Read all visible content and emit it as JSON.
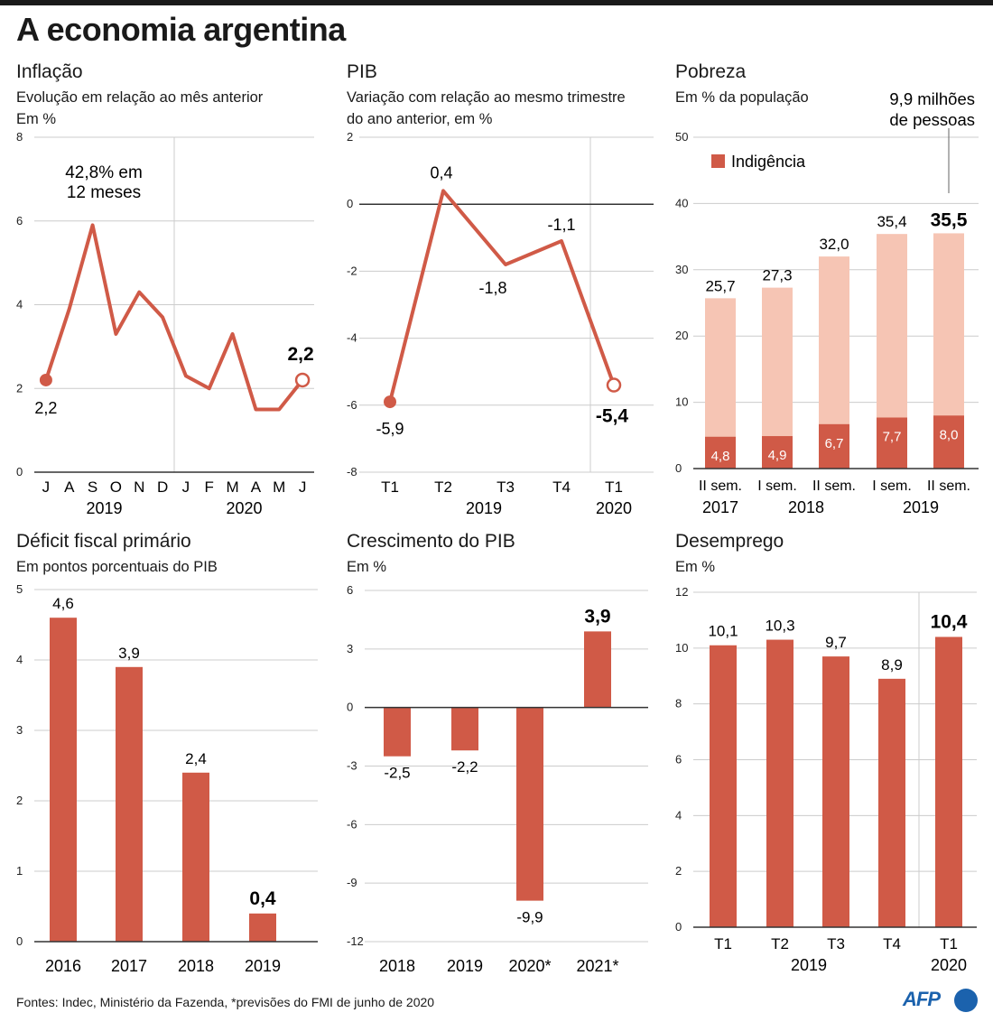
{
  "page_title": "A economia argentina",
  "footer": "Fontes: Indec, Ministério da Fazenda, *previsões do FMI de junho de 2020",
  "logo": "AFP",
  "colors": {
    "bar": "#d05a47",
    "bar_light": "#f6c5b4",
    "line": "#d05a47",
    "axis": "#333333",
    "grid": "#cccccc"
  },
  "chart_data": [
    {
      "id": "inflacao",
      "type": "line",
      "title": "Inflação",
      "subtitle": "Evolução em relação ao mês anterior\nEm %",
      "categories": [
        "J",
        "A",
        "S",
        "O",
        "N",
        "D",
        "J",
        "F",
        "M",
        "A",
        "M",
        "J"
      ],
      "year_labels": [
        "2019",
        "2020"
      ],
      "values": [
        2.2,
        3.9,
        5.9,
        3.3,
        4.3,
        3.7,
        2.3,
        2.0,
        3.3,
        1.5,
        1.5,
        2.2
      ],
      "first_label": "2,2",
      "last_label": "2,2",
      "annotation": "42,8% em\n12 meses",
      "yticks": [
        "0",
        "2",
        "4",
        "6",
        "8"
      ],
      "ylim": [
        0,
        8
      ]
    },
    {
      "id": "pib",
      "type": "line",
      "title": "PIB",
      "subtitle": "Variação com relação ao mesmo trimestre\ndo ano anterior, em %",
      "categories": [
        "T1",
        "T2",
        "T3",
        "T4",
        "T1"
      ],
      "year_labels": [
        "2019",
        "2020"
      ],
      "values": [
        -5.9,
        0.4,
        -1.8,
        -1.1,
        -5.4
      ],
      "point_labels": [
        "-5,9",
        "0,4",
        "-1,8",
        "-1,1",
        "-5,4"
      ],
      "yticks": [
        "-8",
        "-6",
        "-4",
        "-2",
        "0",
        "2"
      ],
      "ylim": [
        -8,
        2
      ]
    },
    {
      "id": "pobreza",
      "type": "bar",
      "title": "Pobreza",
      "subtitle": "Em % da população",
      "legend": "Indigência",
      "annotation": "9,9 milhões\nde pessoas",
      "categories": [
        "II sem.",
        "I sem.",
        "II sem.",
        "I sem.",
        "II sem."
      ],
      "year_labels": [
        "2017",
        "2018",
        "2019"
      ],
      "series": [
        {
          "name": "Indigência",
          "values": [
            4.8,
            4.9,
            6.7,
            7.7,
            8.0
          ],
          "labels": [
            "4,8",
            "4,9",
            "6,7",
            "7,7",
            "8,0"
          ]
        },
        {
          "name": "Pobreza",
          "values": [
            25.7,
            27.3,
            32.0,
            35.4,
            35.5
          ],
          "labels": [
            "25,7",
            "27,3",
            "32,0",
            "35,4",
            "35,5"
          ]
        }
      ],
      "yticks": [
        "0",
        "10",
        "20",
        "30",
        "40",
        "50"
      ],
      "ylim": [
        0,
        50
      ]
    },
    {
      "id": "deficit",
      "type": "bar",
      "title": "Déficit fiscal primário",
      "subtitle": "Em pontos porcentuais do PIB",
      "categories": [
        "2016",
        "2017",
        "2018",
        "2019"
      ],
      "values": [
        4.6,
        3.9,
        2.4,
        0.4
      ],
      "value_labels": [
        "4,6",
        "3,9",
        "2,4",
        "0,4"
      ],
      "yticks": [
        "0",
        "1",
        "2",
        "3",
        "4",
        "5"
      ],
      "ylim": [
        0,
        5
      ]
    },
    {
      "id": "crescimento",
      "type": "bar",
      "title": "Crescimento do PIB",
      "subtitle": "Em %",
      "categories": [
        "2018",
        "2019",
        "2020*",
        "2021*"
      ],
      "values": [
        -2.5,
        -2.2,
        -9.9,
        3.9
      ],
      "value_labels": [
        "-2,5",
        "-2,2",
        "-9,9",
        "3,9"
      ],
      "yticks": [
        "-12",
        "-9",
        "-6",
        "-3",
        "0",
        "3",
        "6"
      ],
      "ylim": [
        -12,
        6
      ]
    },
    {
      "id": "desemprego",
      "type": "bar",
      "title": "Desemprego",
      "subtitle": "Em %",
      "categories": [
        "T1",
        "T2",
        "T3",
        "T4",
        "T1"
      ],
      "year_labels": [
        "2019",
        "2020"
      ],
      "values": [
        10.1,
        10.3,
        9.7,
        8.9,
        10.4
      ],
      "value_labels": [
        "10,1",
        "10,3",
        "9,7",
        "8,9",
        "10,4"
      ],
      "yticks": [
        "0",
        "2",
        "4",
        "6",
        "8",
        "10",
        "12"
      ],
      "ylim": [
        0,
        12
      ]
    }
  ]
}
